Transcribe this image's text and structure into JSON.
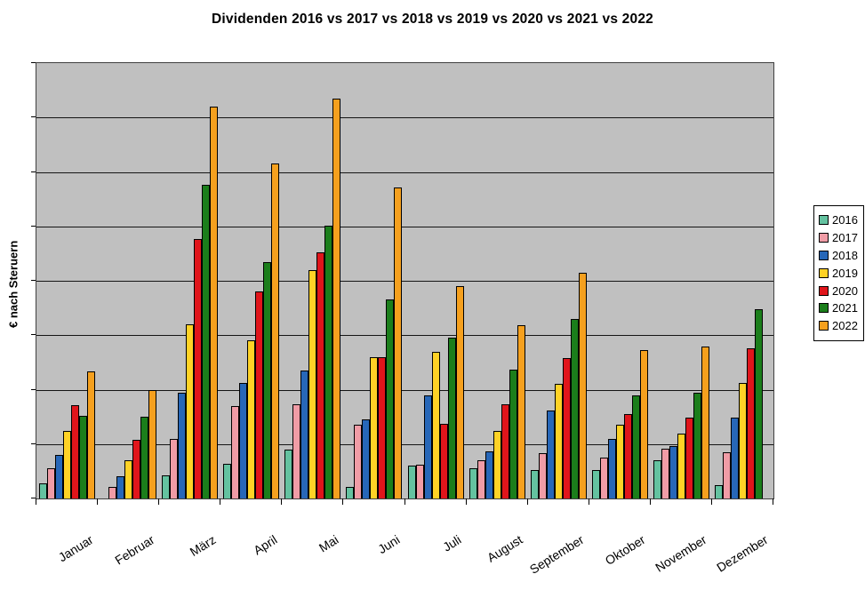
{
  "title": "Dividenden 2016 vs 2017 vs 2018 vs 2019 vs 2020 vs 2021 vs 2022",
  "y_axis": {
    "label": "€ nach Steruern",
    "numeric_tick_labels_visible": false
  },
  "x_axis": {
    "labels": [
      "Januar",
      "Februar",
      "März",
      "April",
      "Mai",
      "Juni",
      "Juli",
      "August",
      "September",
      "Oktober",
      "November",
      "Dezember"
    ]
  },
  "legend": {
    "position": "right",
    "labels": [
      "2016",
      "2017",
      "2018",
      "2019",
      "2020",
      "2021",
      "2022"
    ]
  },
  "style": {
    "plot_background": "#C0C0C0",
    "gridline_color": "#151515",
    "bar_border_color": "#000000",
    "legend_border_color": "#000000",
    "text_color": "#000000"
  },
  "chart_data": {
    "type": "bar",
    "title": "Dividenden 2016 vs 2017 vs 2018 vs 2019 vs 2020 vs 2021 vs 2022",
    "xlabel": "",
    "ylabel": "€ nach Steruern",
    "categories": [
      "Januar",
      "Februar",
      "März",
      "April",
      "Mai",
      "Juni",
      "Juli",
      "August",
      "September",
      "Oktober",
      "November",
      "Dezember"
    ],
    "series": [
      {
        "name": "2016",
        "color": "#64C2A0",
        "values": [
          27,
          0,
          42,
          63,
          90,
          22,
          60,
          55,
          52,
          52,
          71,
          25
        ]
      },
      {
        "name": "2017",
        "color": "#F09CA6",
        "values": [
          55,
          22,
          110,
          170,
          173,
          135,
          62,
          71,
          83,
          75,
          91,
          85
        ]
      },
      {
        "name": "2018",
        "color": "#2767B8",
        "values": [
          80,
          41,
          195,
          213,
          235,
          145,
          190,
          87,
          161,
          109,
          96,
          149
        ]
      },
      {
        "name": "2019",
        "color": "#FFD226",
        "values": [
          124,
          71,
          320,
          290,
          419,
          260,
          270,
          124,
          211,
          136,
          119,
          213
        ]
      },
      {
        "name": "2020",
        "color": "#E0151B",
        "values": [
          171,
          108,
          476,
          381,
          452,
          260,
          137,
          173,
          258,
          155,
          148,
          276
        ]
      },
      {
        "name": "2021",
        "color": "#1B7E1B",
        "values": [
          152,
          150,
          576,
          434,
          501,
          366,
          295,
          236,
          329,
          189,
          195,
          348
        ]
      },
      {
        "name": "2022",
        "color": "#F5A01E",
        "values": [
          233,
          199,
          720,
          616,
          735,
          571,
          391,
          318,
          415,
          272,
          279,
          0
        ]
      }
    ],
    "ylim": [
      0,
      800
    ],
    "grid_step": 100,
    "grid": true,
    "legend_position": "right",
    "note": "Y axis shows no numeric labels; values are estimated in relative units where one gridline interval = 100."
  }
}
